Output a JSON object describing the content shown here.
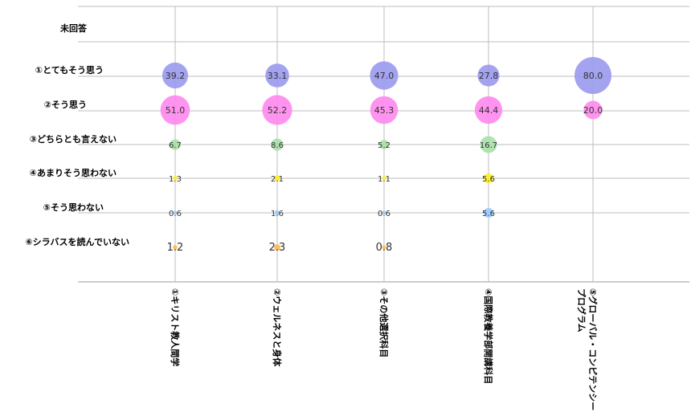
{
  "chart_data": {
    "type": "bubble",
    "categories": [
      "①キリスト教人間学",
      "②ウェルネスと身体",
      "③その他選択科目",
      "④国際教養学部開講科目",
      "⑤グローバル・コンピテンシープログラム"
    ],
    "category_lines": [
      [
        "①キリスト教人間学"
      ],
      [
        "②ウェルネスと身体"
      ],
      [
        "③その他選択科目"
      ],
      [
        "④国際教養学部開講科目"
      ],
      [
        "⑤グローバル・コンピテンシー",
        "プログラム"
      ]
    ],
    "responses": [
      "未回答",
      "①とてもそう思う",
      "②そう思う",
      "③どちらとも言えない",
      "④あまりそう思わない",
      "⑤そう思わない",
      "⑥シラバスを読んでいない"
    ],
    "series": [
      {
        "values": [
          null,
          null,
          null,
          null,
          null
        ]
      },
      {
        "values": [
          39.2,
          33.1,
          47.0,
          27.8,
          80.0
        ]
      },
      {
        "values": [
          51.0,
          52.2,
          45.3,
          44.4,
          20.0
        ]
      },
      {
        "values": [
          6.7,
          8.6,
          5.2,
          16.7,
          null
        ]
      },
      {
        "values": [
          1.3,
          2.1,
          1.1,
          5.6,
          null
        ]
      },
      {
        "values": [
          0.6,
          1.6,
          0.6,
          5.6,
          null
        ]
      },
      {
        "values": [
          1.2,
          2.3,
          0.8,
          null,
          null
        ]
      }
    ],
    "value_labels": [
      [
        null,
        null,
        null,
        null,
        null
      ],
      [
        "39.2",
        "33.1",
        "47.0",
        "27.8",
        "80.0"
      ],
      [
        "51.0",
        "52.2",
        "45.3",
        "44.4",
        "20.0"
      ],
      [
        "6.7",
        "8.6",
        "5.2",
        "16.7",
        null
      ],
      [
        "1.3",
        "2.1",
        "1.1",
        "5.6",
        null
      ],
      [
        "0.6",
        "1.6",
        "0.6",
        "5.6",
        null
      ],
      [
        "1.2",
        "2.3",
        "0.8",
        null,
        null
      ]
    ],
    "colors": [
      "#cccccc",
      "#9999ee",
      "#ff88ee",
      "#a8e0a8",
      "#ffee22",
      "#99ccff",
      "#ffbb44"
    ],
    "grid": true,
    "legend": "none"
  }
}
